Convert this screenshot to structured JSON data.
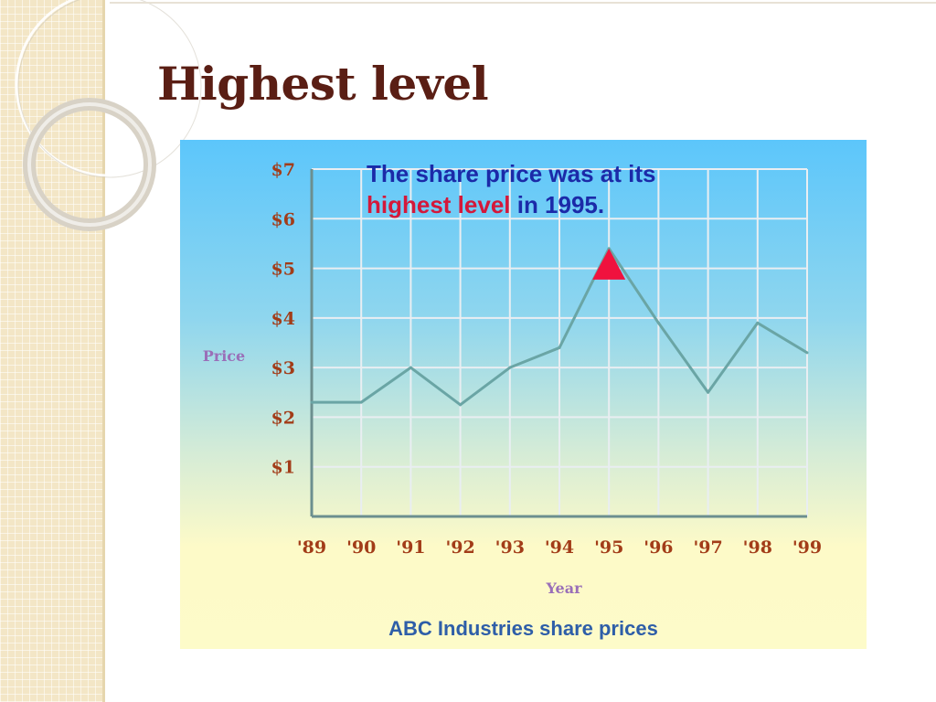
{
  "slide": {
    "title": "Highest level"
  },
  "chart_data": {
    "type": "line",
    "title": "ABC Industries share prices",
    "xlabel": "Year",
    "ylabel": "Price",
    "categories": [
      "'89",
      "'90",
      "'91",
      "'92",
      "'93",
      "'94",
      "'95",
      "'96",
      "'97",
      "'98",
      "'99"
    ],
    "y_tick_labels": [
      "$1",
      "$2",
      "$3",
      "$4",
      "$5",
      "$6",
      "$7"
    ],
    "ylim": [
      0,
      7
    ],
    "grid": true,
    "series": [
      {
        "values": [
          2.3,
          2.3,
          3.0,
          2.25,
          3.0,
          3.4,
          5.4,
          3.9,
          2.5,
          3.9,
          3.3
        ],
        "color": "#6aa5a5"
      }
    ],
    "annotation": {
      "text_part1": "The share price was at its",
      "text_highlight": "highest level",
      "text_part2": " in 1995.",
      "marker_category": "'95",
      "marker_value": 5.4,
      "marker_color": "#f0123e",
      "highlight_color": "#d4183a",
      "text_color": "#1b2aa8"
    }
  }
}
